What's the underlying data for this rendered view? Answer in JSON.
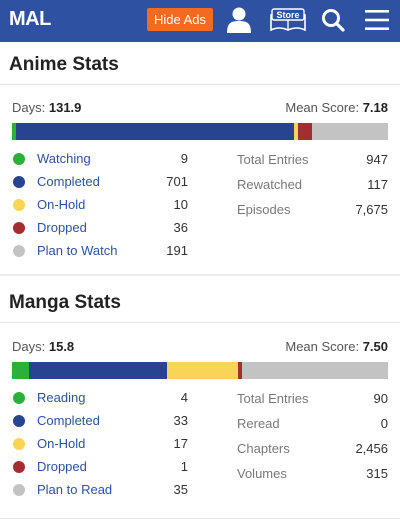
{
  "header": {
    "logo": "MAL",
    "hide_ads": "Hide Ads",
    "store_label": "Store",
    "colors": {
      "bar": "#2e51a2",
      "ads": "#f26b21"
    }
  },
  "anime": {
    "title": "Anime Stats",
    "days_label": "Days:",
    "days_value": "131.9",
    "mean_label": "Mean Score:",
    "mean_value": "7.18",
    "legend": [
      {
        "label": "Watching",
        "count": "9",
        "color": "#2db039"
      },
      {
        "label": "Completed",
        "count": "701",
        "color": "#26448f"
      },
      {
        "label": "On-Hold",
        "count": "10",
        "color": "#f9d457"
      },
      {
        "label": "Dropped",
        "count": "36",
        "color": "#a12f31"
      },
      {
        "label": "Plan to Watch",
        "count": "191",
        "color": "#c3c3c3"
      }
    ],
    "totals": [
      {
        "label": "Total Entries",
        "value": "947"
      },
      {
        "label": "Rewatched",
        "value": "117"
      },
      {
        "label": "Episodes",
        "value": "7,675"
      }
    ]
  },
  "manga": {
    "title": "Manga Stats",
    "days_label": "Days:",
    "days_value": "15.8",
    "mean_label": "Mean Score:",
    "mean_value": "7.50",
    "legend": [
      {
        "label": "Reading",
        "count": "4",
        "color": "#2db039"
      },
      {
        "label": "Completed",
        "count": "33",
        "color": "#26448f"
      },
      {
        "label": "On-Hold",
        "count": "17",
        "color": "#f9d457"
      },
      {
        "label": "Dropped",
        "count": "1",
        "color": "#a12f31"
      },
      {
        "label": "Plan to Read",
        "count": "35",
        "color": "#c3c3c3"
      }
    ],
    "totals": [
      {
        "label": "Total Entries",
        "value": "90"
      },
      {
        "label": "Reread",
        "value": "0"
      },
      {
        "label": "Chapters",
        "value": "2,456"
      },
      {
        "label": "Volumes",
        "value": "315"
      }
    ]
  }
}
